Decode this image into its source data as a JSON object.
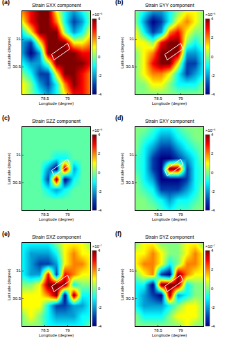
{
  "chart_data": [
    {
      "type": "heatmap",
      "title": "Strain SXX component",
      "annotations": [
        "(a)"
      ],
      "x_label": "Longitude (degree)",
      "y_label": "Latitude (degree)",
      "xlim": [
        78,
        79.5
      ],
      "ylim": [
        30,
        31.5
      ],
      "xticks": [
        78.5,
        79
      ],
      "yticks": [
        30.5,
        31
      ],
      "x": [
        78,
        78.1875,
        78.375,
        78.5625,
        78.75,
        78.9375,
        79.125,
        79.3125,
        79.5
      ],
      "y": [
        30,
        30.1875,
        30.375,
        30.5625,
        30.75,
        30.9375,
        31.125,
        31.3125,
        31.5
      ],
      "z": [
        [
          1,
          0,
          -1,
          -2,
          -1,
          1,
          3,
          3,
          2
        ],
        [
          1,
          0,
          -2,
          -3,
          -1,
          2,
          4,
          3,
          2
        ],
        [
          0,
          -1,
          -3,
          -3,
          1,
          4,
          4,
          3,
          2
        ],
        [
          -1,
          -2,
          -2,
          0,
          4,
          4,
          4,
          4,
          3
        ],
        [
          -2,
          -4,
          -2,
          4,
          4,
          4,
          4,
          3,
          3
        ],
        [
          -2,
          -3,
          1,
          4,
          4,
          4,
          1,
          1,
          2
        ],
        [
          -1,
          1,
          4,
          4,
          4,
          0,
          -2,
          -1,
          1
        ],
        [
          1,
          3,
          4,
          4,
          2,
          -1,
          -3,
          -2,
          0
        ],
        [
          2,
          3,
          4,
          4,
          1,
          -1,
          -2,
          -1,
          0
        ]
      ],
      "colorbar": {
        "range": [
          -4,
          4
        ],
        "ticks": [
          -4,
          -2,
          0,
          2,
          4
        ],
        "label": "×10⁻⁶"
      },
      "fault": {
        "x": [
          78.7,
          79.05,
          79.0,
          78.65
        ],
        "y": [
          30.62,
          30.82,
          30.92,
          30.72
        ]
      }
    },
    {
      "type": "heatmap",
      "title": "Strain SYY component",
      "annotations": [
        "(b)"
      ],
      "x_label": "Longitude (degree)",
      "y_label": "Latitude (degree)",
      "xlim": [
        78,
        79.5
      ],
      "ylim": [
        30,
        31.5
      ],
      "xticks": [
        78.5,
        79
      ],
      "yticks": [
        30.5,
        31
      ],
      "x": [
        78,
        78.1875,
        78.375,
        78.5625,
        78.75,
        78.9375,
        79.125,
        79.3125,
        79.5
      ],
      "y": [
        30,
        30.1875,
        30.375,
        30.5625,
        30.75,
        30.9375,
        31.125,
        31.3125,
        31.5
      ],
      "z": [
        [
          0,
          0,
          0,
          0,
          0,
          0,
          0,
          0,
          0
        ],
        [
          0,
          0,
          1,
          1,
          0,
          -1,
          -1,
          -1,
          0
        ],
        [
          0,
          1,
          2,
          2,
          1,
          -1,
          -3,
          -2,
          -1
        ],
        [
          0,
          1,
          3,
          4,
          4,
          1,
          -3,
          -3,
          -1
        ],
        [
          0,
          1,
          2,
          4,
          4,
          4,
          -2,
          -2,
          -1
        ],
        [
          1,
          1,
          0,
          3,
          4,
          4,
          0,
          -1,
          0
        ],
        [
          1,
          -1,
          -3,
          -2,
          2,
          3,
          1,
          0,
          0
        ],
        [
          0,
          -2,
          -4,
          -3,
          -1,
          1,
          2,
          1,
          0
        ],
        [
          0,
          -1,
          -2,
          -2,
          -1,
          0,
          1,
          1,
          0
        ]
      ],
      "colorbar": {
        "range": [
          -4,
          4
        ],
        "ticks": [
          -4,
          -2,
          0,
          2,
          4
        ],
        "label": "×10⁻⁶"
      },
      "fault": {
        "x": [
          78.7,
          79.05,
          79.0,
          78.65
        ],
        "y": [
          30.62,
          30.82,
          30.92,
          30.72
        ]
      }
    },
    {
      "type": "heatmap",
      "title": "Strain SZZ component",
      "annotations": [
        "(c)"
      ],
      "x_label": "Longitude (degree)",
      "y_label": "Latitude (degree)",
      "xlim": [
        78,
        79.5
      ],
      "ylim": [
        30,
        31.5
      ],
      "xticks": [
        78.5,
        79
      ],
      "yticks": [
        30.5,
        31
      ],
      "x": [
        78,
        78.1875,
        78.375,
        78.5625,
        78.75,
        78.9375,
        79.125,
        79.3125,
        79.5
      ],
      "y": [
        30,
        30.1875,
        30.375,
        30.5625,
        30.75,
        30.9375,
        31.125,
        31.3125,
        31.5
      ],
      "z": [
        [
          -0.3,
          -0.3,
          -0.3,
          -0.3,
          -0.3,
          -0.3,
          -0.3,
          -0.3,
          -0.3
        ],
        [
          -0.3,
          -0.3,
          -0.3,
          -0.3,
          -0.3,
          -0.3,
          -0.3,
          -0.3,
          -0.3
        ],
        [
          -0.3,
          -0.3,
          -0.3,
          -1,
          -2,
          -1,
          -0.3,
          -0.3,
          -0.3
        ],
        [
          -0.3,
          -0.3,
          -0.3,
          -3,
          4,
          -4,
          -1,
          -0.3,
          -0.3
        ],
        [
          -0.3,
          -0.3,
          -0.3,
          -2,
          -4,
          4,
          -2,
          -0.3,
          -0.3
        ],
        [
          -0.3,
          -0.3,
          -0.3,
          -0.3,
          -1,
          -1,
          -0.3,
          -0.3,
          -0.3
        ],
        [
          -0.3,
          -0.3,
          -0.3,
          -0.3,
          -0.3,
          -0.3,
          -0.3,
          -0.3,
          -0.3
        ],
        [
          -0.3,
          -0.3,
          -0.3,
          -0.3,
          -0.3,
          -0.3,
          -0.3,
          -0.3,
          -0.3
        ],
        [
          -0.3,
          -0.3,
          -0.3,
          -0.3,
          -0.3,
          -0.3,
          -0.3,
          -0.3,
          -0.3
        ]
      ],
      "colorbar": {
        "range": [
          -4,
          4
        ],
        "ticks": [
          -4,
          -2,
          0,
          2,
          4
        ],
        "label": "×10⁻⁶"
      },
      "fault": {
        "x": [
          78.7,
          79.05,
          79.0,
          78.65
        ],
        "y": [
          30.62,
          30.82,
          30.92,
          30.72
        ]
      }
    },
    {
      "type": "heatmap",
      "title": "Strain SXY component",
      "annotations": [
        "(d)"
      ],
      "x_label": "Longitude (degree)",
      "y_label": "Latitude (degree)",
      "xlim": [
        78,
        79.5
      ],
      "ylim": [
        30,
        31.5
      ],
      "xticks": [
        78.5,
        79
      ],
      "yticks": [
        30.5,
        31
      ],
      "x": [
        78,
        78.1875,
        78.375,
        78.5625,
        78.75,
        78.9375,
        79.125,
        79.3125,
        79.5
      ],
      "y": [
        30,
        30.1875,
        30.375,
        30.5625,
        30.75,
        30.9375,
        31.125,
        31.3125,
        31.5
      ],
      "z": [
        [
          0,
          0,
          0,
          -0.5,
          -1,
          -0.5,
          -0.5,
          0,
          0
        ],
        [
          0,
          0,
          -0.5,
          -1,
          -2,
          -1,
          -1,
          -0.5,
          0
        ],
        [
          0,
          -0.5,
          -1,
          -3,
          -3,
          -3,
          -2,
          -1,
          0
        ],
        [
          0,
          -1,
          -2,
          -4,
          -4,
          -4,
          -3,
          -1,
          -0.5
        ],
        [
          -0.5,
          -1,
          -3,
          -4,
          4,
          4,
          -3,
          -1,
          -0.5
        ],
        [
          -0.5,
          -1,
          -3,
          -4,
          -4,
          -3,
          -2,
          -1,
          0
        ],
        [
          0,
          -1,
          -2,
          -3,
          -3,
          -2,
          -1,
          -0.5,
          0
        ],
        [
          0,
          -0.5,
          -1,
          -2,
          -2,
          -1,
          -0.5,
          0,
          0
        ],
        [
          0,
          0,
          -0.5,
          -1,
          -1,
          -0.5,
          0,
          0,
          0
        ]
      ],
      "colorbar": {
        "range": [
          -4,
          4
        ],
        "ticks": [
          -4,
          -2,
          0,
          2,
          4
        ],
        "label": "×10⁻⁶"
      },
      "fault": {
        "x": [
          78.7,
          79.05,
          79.0,
          78.65
        ],
        "y": [
          30.62,
          30.82,
          30.92,
          30.72
        ]
      }
    },
    {
      "type": "heatmap",
      "title": "Strain SXZ component",
      "annotations": [
        "(e)"
      ],
      "x_label": "Longitude (degree)",
      "y_label": "Latitude (degree)",
      "xlim": [
        78,
        79.5
      ],
      "ylim": [
        30,
        31.5
      ],
      "xticks": [
        78.5,
        79
      ],
      "yticks": [
        30.5,
        31
      ],
      "x": [
        78,
        78.1875,
        78.375,
        78.5625,
        78.75,
        78.9375,
        79.125,
        79.3125,
        79.5
      ],
      "y": [
        30,
        30.1875,
        30.375,
        30.5625,
        30.75,
        30.9375,
        31.125,
        31.3125,
        31.5
      ],
      "z": [
        [
          0,
          0,
          0,
          -1,
          -1,
          -1,
          -1,
          -1,
          0
        ],
        [
          0,
          1,
          0,
          -1,
          -2,
          -2,
          -2,
          -1,
          -1
        ],
        [
          1,
          1,
          1,
          -1,
          -3,
          -3,
          -2,
          -2,
          -1
        ],
        [
          1,
          1,
          1,
          2,
          4,
          -4,
          4,
          -1,
          -1
        ],
        [
          0,
          0,
          1,
          4,
          4,
          4,
          -1,
          0,
          0
        ],
        [
          -1,
          -2,
          -2,
          3,
          -3,
          3,
          2,
          1,
          1
        ],
        [
          -1,
          -2,
          -3,
          -3,
          -2,
          1,
          2,
          2,
          1
        ],
        [
          -1,
          -2,
          -2,
          -2,
          -1,
          1,
          2,
          1,
          1
        ],
        [
          -1,
          -1,
          -1,
          -1,
          0,
          1,
          1,
          1,
          0
        ]
      ],
      "colorbar": {
        "range": [
          -4,
          4
        ],
        "ticks": [
          -4,
          -2,
          0,
          2,
          4
        ],
        "label": "×10⁻⁷"
      },
      "fault": {
        "x": [
          78.7,
          79.05,
          79.0,
          78.65
        ],
        "y": [
          30.62,
          30.82,
          30.92,
          30.72
        ]
      }
    },
    {
      "type": "heatmap",
      "title": "Strain SYZ component",
      "annotations": [
        "(f)"
      ],
      "x_label": "Longitude (degree)",
      "y_label": "Latitude (degree)",
      "xlim": [
        78,
        79.5
      ],
      "ylim": [
        30,
        31.5
      ],
      "xticks": [
        78.5,
        79
      ],
      "yticks": [
        30.5,
        31
      ],
      "x": [
        78,
        78.1875,
        78.375,
        78.5625,
        78.75,
        78.9375,
        79.125,
        79.3125,
        79.5
      ],
      "y": [
        30,
        30.1875,
        30.375,
        30.5625,
        30.75,
        30.9375,
        31.125,
        31.3125,
        31.5
      ],
      "z": [
        [
          0,
          0,
          0,
          0,
          0,
          0,
          1,
          0,
          0
        ],
        [
          0,
          -1,
          -1,
          -1,
          0,
          1,
          1,
          1,
          0
        ],
        [
          -1,
          -2,
          -2,
          -2,
          -1,
          0,
          1,
          1,
          0
        ],
        [
          -1,
          -2,
          -3,
          -4,
          4,
          -2,
          -1,
          0,
          0
        ],
        [
          -1,
          -1,
          -4,
          4,
          4,
          4,
          -1,
          0,
          0
        ],
        [
          0,
          1,
          2,
          -3,
          -4,
          4,
          2,
          1,
          1
        ],
        [
          1,
          2,
          2,
          1,
          -1,
          0,
          2,
          2,
          1
        ],
        [
          1,
          1,
          2,
          1,
          0,
          0,
          1,
          2,
          1
        ],
        [
          0,
          1,
          1,
          0,
          0,
          0,
          1,
          1,
          0
        ]
      ],
      "colorbar": {
        "range": [
          -4,
          4
        ],
        "ticks": [
          -4,
          -2,
          0,
          2,
          4
        ],
        "label": "×10⁻⁷"
      },
      "fault": {
        "x": [
          78.7,
          79.05,
          79.0,
          78.65
        ],
        "y": [
          30.62,
          30.82,
          30.92,
          30.72
        ]
      }
    }
  ]
}
